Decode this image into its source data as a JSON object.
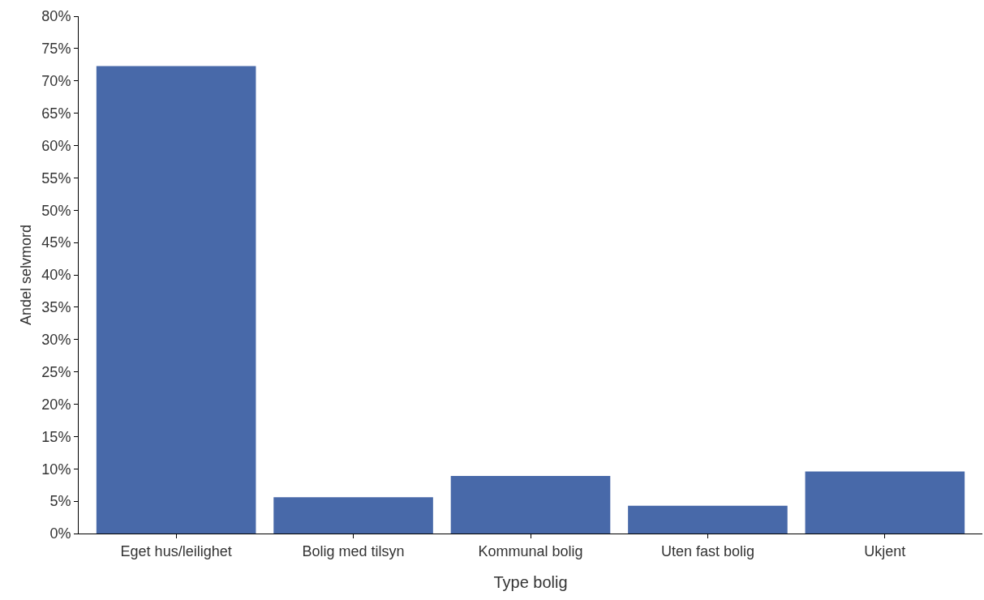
{
  "chart_data": {
    "type": "bar",
    "xlabel": "Type bolig",
    "ylabel": "Andel selvmord",
    "categories": [
      "Eget hus/leilighet",
      "Bolig med tilsyn",
      "Kommunal bolig",
      "Uten fast bolig",
      "Ukjent"
    ],
    "values": [
      72.3,
      5.6,
      8.9,
      4.3,
      9.6
    ],
    "color": "#4869a9",
    "ylim": [
      0,
      80
    ],
    "yticks": [
      {
        "value": 0,
        "label": "0%"
      },
      {
        "value": 5,
        "label": "5%"
      },
      {
        "value": 10,
        "label": "10%"
      },
      {
        "value": 15,
        "label": "15%"
      },
      {
        "value": 20,
        "label": "20%"
      },
      {
        "value": 25,
        "label": "25%"
      },
      {
        "value": 30,
        "label": "30%"
      },
      {
        "value": 35,
        "label": "35%"
      },
      {
        "value": 40,
        "label": "40%"
      },
      {
        "value": 45,
        "label": "45%"
      },
      {
        "value": 50,
        "label": "50%"
      },
      {
        "value": 55,
        "label": "55%"
      },
      {
        "value": 60,
        "label": "60%"
      },
      {
        "value": 65,
        "label": "65%"
      },
      {
        "value": 70,
        "label": "70%"
      },
      {
        "value": 75,
        "label": "75%"
      },
      {
        "value": 80,
        "label": "80%"
      }
    ]
  }
}
